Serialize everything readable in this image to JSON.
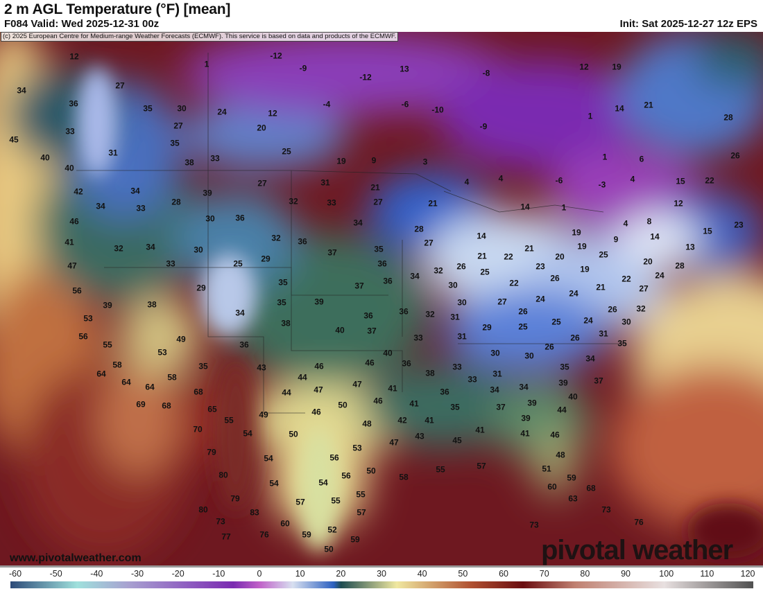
{
  "header": {
    "title": "2 m AGL Temperature (°F) [mean]",
    "valid": "F084 Valid: Wed 2025-12-31 00z",
    "init": "Init: Sat 2025-12-27 12z EPS",
    "copyright": "(c) 2025 European Centre for Medium-range Weather Forecasts (ECMWF). This service is based on data and products of the ECMWF."
  },
  "branding": {
    "website": "www.pivotalweather.com",
    "logo_text": "pivotal weather"
  },
  "colorbar": {
    "units": "°F",
    "ticks": [
      "-60",
      "-50",
      "-40",
      "-30",
      "-20",
      "-10",
      "0",
      "10",
      "20",
      "30",
      "40",
      "50",
      "60",
      "70",
      "80",
      "90",
      "100",
      "110",
      "120"
    ],
    "stops": [
      "#2c4a78",
      "#9fe0dc",
      "#a8a0d0",
      "#8e5cc0",
      "#7a2ab0",
      "#c060c8",
      "#d8e0f0",
      "#2c60c0",
      "#1e4c50",
      "#f0e8a0",
      "#b05030",
      "#6a0c10",
      "#c08070",
      "#e8e0e0",
      "#505050"
    ]
  },
  "map": {
    "field": "2 m temperature mean (°F)",
    "labels": [
      12,
      -12,
      1,
      -9,
      -12,
      13,
      -8,
      12,
      19,
      34,
      27,
      36,
      35,
      30,
      24,
      12,
      -4,
      -6,
      -10,
      14,
      21,
      28,
      33,
      27,
      20,
      -9,
      1,
      45,
      35,
      25,
      31,
      40,
      38,
      33,
      19,
      9,
      3,
      1,
      6,
      26,
      40,
      42,
      34,
      28,
      39,
      27,
      31,
      21,
      27,
      32,
      33,
      21,
      -6,
      -3,
      15,
      22,
      4,
      4,
      4,
      34,
      33,
      30,
      36,
      34,
      28,
      14,
      1,
      12,
      4,
      8,
      19,
      15,
      23,
      46,
      41,
      32,
      34,
      30,
      32,
      36,
      37,
      35,
      27,
      14,
      21,
      22,
      21,
      19,
      25,
      9,
      14,
      13,
      47,
      33,
      25,
      29,
      36,
      32,
      26,
      25,
      23,
      20,
      19,
      26,
      20,
      28,
      24,
      56,
      29,
      35,
      37,
      36,
      34,
      30,
      22,
      21,
      22,
      24,
      27,
      39,
      38,
      35,
      39,
      36,
      32,
      30,
      27,
      24,
      26,
      26,
      32,
      53,
      34,
      38,
      40,
      36,
      37,
      31,
      29,
      25,
      25,
      24,
      30,
      56,
      49,
      36,
      33,
      31,
      26,
      31,
      35,
      26,
      55,
      53,
      40,
      30,
      30,
      34,
      35,
      58,
      35,
      43,
      46,
      46,
      36,
      38,
      33,
      31,
      64,
      58,
      44,
      33,
      39,
      37,
      64,
      64,
      47,
      41,
      36,
      34,
      34,
      40,
      68,
      44,
      47,
      50,
      46,
      41,
      35,
      37,
      39,
      44,
      69,
      68,
      65,
      46,
      49,
      55,
      42,
      41,
      39,
      48,
      70,
      54,
      50,
      43,
      41,
      41,
      46,
      47,
      45,
      53,
      79,
      54,
      56,
      48,
      57,
      55,
      50,
      58,
      51,
      56,
      59,
      80,
      54,
      54,
      60,
      68,
      63,
      79,
      57,
      55,
      55,
      57,
      80,
      83,
      73,
      60,
      52,
      73,
      76,
      77,
      76,
      59,
      59,
      73,
      50
    ]
  }
}
